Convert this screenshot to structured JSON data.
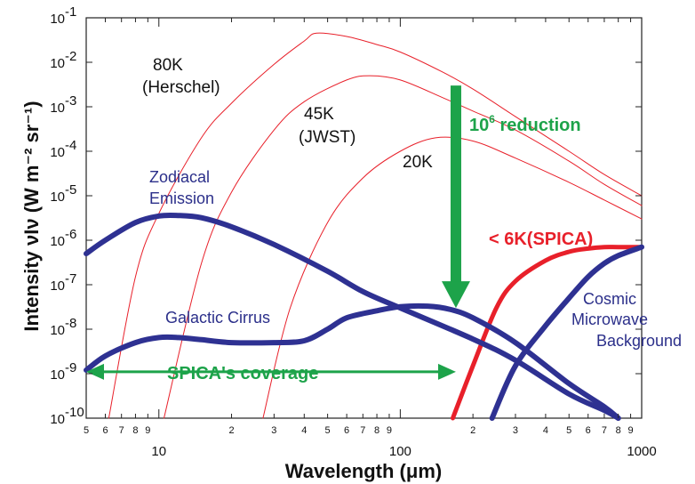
{
  "chart_data": {
    "type": "line",
    "title": "",
    "xlabel": "Wavelength (μm)",
    "ylabel": "Intensity νIν (W m⁻² sr⁻¹)",
    "x_scale": "log",
    "y_scale": "log",
    "xlim": [
      5,
      1000
    ],
    "ylim": [
      1e-10,
      0.1
    ],
    "grid": false,
    "x_major_ticks": [
      {
        "value": 10,
        "label": "10"
      },
      {
        "value": 100,
        "label": "100"
      },
      {
        "value": 1000,
        "label": "1000"
      }
    ],
    "x_minor_ticks": [
      {
        "value": 5,
        "label": "5"
      },
      {
        "value": 6,
        "label": "6"
      },
      {
        "value": 7,
        "label": "7"
      },
      {
        "value": 8,
        "label": "8"
      },
      {
        "value": 9,
        "label": "9"
      },
      {
        "value": 20,
        "label": "2"
      },
      {
        "value": 30,
        "label": "3"
      },
      {
        "value": 40,
        "label": "4"
      },
      {
        "value": 50,
        "label": "5"
      },
      {
        "value": 60,
        "label": "6"
      },
      {
        "value": 70,
        "label": "7"
      },
      {
        "value": 80,
        "label": "8"
      },
      {
        "value": 90,
        "label": "9"
      },
      {
        "value": 200,
        "label": "2"
      },
      {
        "value": 300,
        "label": "3"
      },
      {
        "value": 400,
        "label": "4"
      },
      {
        "value": 500,
        "label": "5"
      },
      {
        "value": 600,
        "label": "6"
      },
      {
        "value": 700,
        "label": "7"
      },
      {
        "value": 800,
        "label": "8"
      },
      {
        "value": 900,
        "label": "9"
      }
    ],
    "y_ticks": [
      {
        "exp": -1,
        "base": "10",
        "sup": "-1"
      },
      {
        "exp": -2,
        "base": "10",
        "sup": "-2"
      },
      {
        "exp": -3,
        "base": "10",
        "sup": "-3"
      },
      {
        "exp": -4,
        "base": "10",
        "sup": "-4"
      },
      {
        "exp": -5,
        "base": "10",
        "sup": "-5"
      },
      {
        "exp": -6,
        "base": "10",
        "sup": "-6"
      },
      {
        "exp": -7,
        "base": "10",
        "sup": "-7"
      },
      {
        "exp": -8,
        "base": "10",
        "sup": "-8"
      },
      {
        "exp": -9,
        "base": "10",
        "sup": "-9"
      },
      {
        "exp": -10,
        "base": "10",
        "sup": "-10"
      }
    ],
    "series": [
      {
        "name": "80K (Herschel)",
        "color": "#e8202a",
        "width": 1,
        "points": [
          [
            6.2,
            1e-10
          ],
          [
            8,
            1.5e-07
          ],
          [
            10,
            4e-06
          ],
          [
            15,
            0.0002
          ],
          [
            20,
            0.0012
          ],
          [
            30,
            0.009
          ],
          [
            40,
            0.03
          ],
          [
            45,
            0.045
          ],
          [
            60,
            0.038
          ],
          [
            80,
            0.025
          ],
          [
            100,
            0.017
          ],
          [
            150,
            0.006
          ],
          [
            200,
            0.0025
          ],
          [
            300,
            0.0006
          ],
          [
            500,
            0.0001
          ],
          [
            700,
            3e-05
          ],
          [
            1000,
            1e-05
          ]
        ]
      },
      {
        "name": "45K (JWST)",
        "color": "#e8202a",
        "width": 1,
        "points": [
          [
            10.5,
            1e-10
          ],
          [
            15,
            3e-07
          ],
          [
            20,
            1.2e-05
          ],
          [
            30,
            0.0003
          ],
          [
            40,
            0.0013
          ],
          [
            60,
            0.004
          ],
          [
            75,
            0.005
          ],
          [
            100,
            0.004
          ],
          [
            150,
            0.0016
          ],
          [
            200,
            0.0008
          ],
          [
            300,
            0.0003
          ],
          [
            500,
            6e-05
          ],
          [
            700,
            1.8e-05
          ],
          [
            1000,
            6e-06
          ]
        ]
      },
      {
        "name": "20K",
        "color": "#e8202a",
        "width": 1,
        "points": [
          [
            27,
            1e-10
          ],
          [
            35,
            3e-08
          ],
          [
            50,
            2.5e-06
          ],
          [
            70,
            2.5e-05
          ],
          [
            100,
            0.0001
          ],
          [
            140,
            0.0002
          ],
          [
            200,
            0.00017
          ],
          [
            300,
            7e-05
          ],
          [
            500,
            2e-05
          ],
          [
            700,
            8e-06
          ],
          [
            1000,
            3e-06
          ]
        ]
      },
      {
        "name": "< 6K(SPICA)",
        "color": "#e8202a",
        "width": 5,
        "points": [
          [
            165,
            1e-10
          ],
          [
            200,
            1.5e-09
          ],
          [
            250,
            3e-08
          ],
          [
            300,
            1.2e-07
          ],
          [
            400,
            3.5e-07
          ],
          [
            500,
            5.5e-07
          ],
          [
            600,
            6.5e-07
          ],
          [
            700,
            7e-07
          ],
          [
            800,
            7e-07
          ],
          [
            1000,
            7e-07
          ]
        ]
      },
      {
        "name": "Zodiacal Emission",
        "color": "#2e3192",
        "width": 6,
        "points": [
          [
            5,
            5e-07
          ],
          [
            6,
            1e-06
          ],
          [
            8,
            2.5e-06
          ],
          [
            10,
            3.5e-06
          ],
          [
            12,
            3.6e-06
          ],
          [
            15,
            3.2e-06
          ],
          [
            20,
            2e-06
          ],
          [
            30,
            8e-07
          ],
          [
            50,
            2e-07
          ],
          [
            70,
            7e-08
          ],
          [
            100,
            3e-08
          ],
          [
            200,
            6e-09
          ],
          [
            300,
            2e-09
          ],
          [
            500,
            3.5e-10
          ],
          [
            700,
            1.5e-10
          ],
          [
            800,
            1e-10
          ]
        ]
      },
      {
        "name": "Galactic Cirrus",
        "color": "#2e3192",
        "width": 6,
        "points": [
          [
            5,
            1.2e-09
          ],
          [
            6,
            2.5e-09
          ],
          [
            8,
            5e-09
          ],
          [
            10,
            6.5e-09
          ],
          [
            12,
            6.5e-09
          ],
          [
            15,
            5.8e-09
          ],
          [
            20,
            5e-09
          ],
          [
            30,
            5e-09
          ],
          [
            40,
            5.5e-09
          ],
          [
            50,
            1e-08
          ],
          [
            60,
            1.8e-08
          ],
          [
            80,
            2.6e-08
          ],
          [
            100,
            3.2e-08
          ],
          [
            130,
            3.3e-08
          ],
          [
            160,
            2.8e-08
          ],
          [
            200,
            1.8e-08
          ],
          [
            300,
            5e-09
          ],
          [
            500,
            6e-10
          ],
          [
            700,
            1.8e-10
          ],
          [
            800,
            1e-10
          ]
        ]
      },
      {
        "name": "Cosmic Microwave Background",
        "color": "#2e3192",
        "width": 6,
        "points": [
          [
            240,
            1e-10
          ],
          [
            300,
            1.5e-09
          ],
          [
            400,
            1.2e-08
          ],
          [
            500,
            5e-08
          ],
          [
            600,
            1.5e-07
          ],
          [
            700,
            3e-07
          ],
          [
            800,
            4.5e-07
          ],
          [
            1000,
            7e-07
          ]
        ]
      }
    ],
    "annotations": {
      "herschel_line1": "80K",
      "herschel_line2": "(Herschel)",
      "jwst_line1": "45K",
      "jwst_line2": "(JWST)",
      "k20": "20K",
      "zodiacal_line1": "Zodiacal",
      "zodiacal_line2": "Emission",
      "cirrus": "Galactic Cirrus",
      "spica": "< 6K(SPICA)",
      "cmb_line1": "Cosmic",
      "cmb_line2": "Microwave",
      "cmb_line3": "Background",
      "reduction_base": "10",
      "reduction_sup": "6",
      "reduction_text": " reduction",
      "coverage": "SPICA's coverage"
    },
    "arrows": {
      "reduction": {
        "x": 170,
        "y_from": 0.003,
        "y_to": 3e-08,
        "color": "#1da34a"
      },
      "coverage": {
        "x_from": 5,
        "x_to": 170,
        "y": 1.1e-09,
        "color": "#1da34a"
      }
    }
  }
}
